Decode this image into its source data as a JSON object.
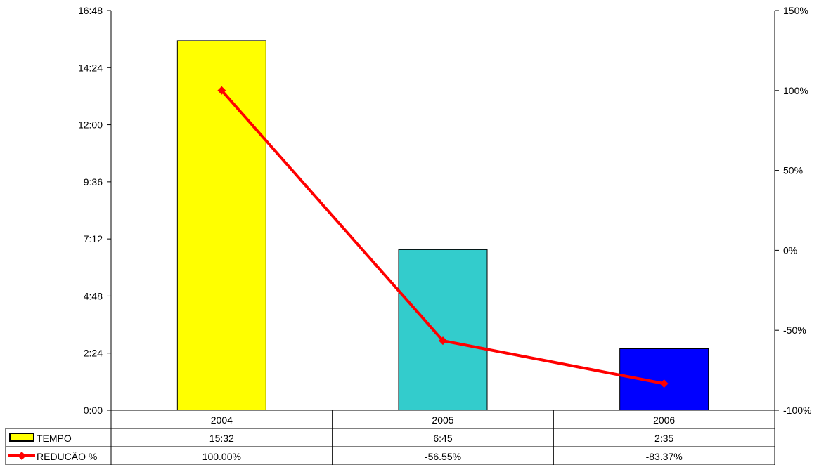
{
  "chart_data": {
    "type": "bar",
    "categories": [
      "2004",
      "2005",
      "2006"
    ],
    "series": [
      {
        "name": "TEMPO",
        "type": "bar",
        "axis": "left",
        "values_minutes": [
          932,
          405,
          155
        ],
        "value_labels": [
          "15:32",
          "6:45",
          "2:35"
        ],
        "bar_colors": [
          "#ffff00",
          "#33cccc",
          "#0000ff"
        ]
      },
      {
        "name": "REDUCÃO %",
        "type": "line",
        "axis": "right",
        "values": [
          100.0,
          -56.55,
          -83.37
        ],
        "value_labels": [
          "100.00%",
          "-56.55%",
          "-83.37%"
        ],
        "color": "#ff0000",
        "marker": "diamond"
      }
    ],
    "left_axis": {
      "ylim_minutes": [
        0,
        1008
      ],
      "tick_minutes": [
        0,
        144,
        288,
        432,
        576,
        720,
        864,
        1008
      ],
      "tick_labels": [
        "0:00",
        "2:24",
        "4:48",
        "7:12",
        "9:36",
        "12:00",
        "14:24",
        "16:48"
      ]
    },
    "right_axis": {
      "ylim": [
        -100,
        150
      ],
      "ticks": [
        -100,
        -50,
        0,
        50,
        100,
        150
      ],
      "tick_labels": [
        "-100%",
        "-50%",
        "0%",
        "50%",
        "100%",
        "150%"
      ]
    },
    "data_table": true,
    "grid": false,
    "legend": "data table"
  }
}
